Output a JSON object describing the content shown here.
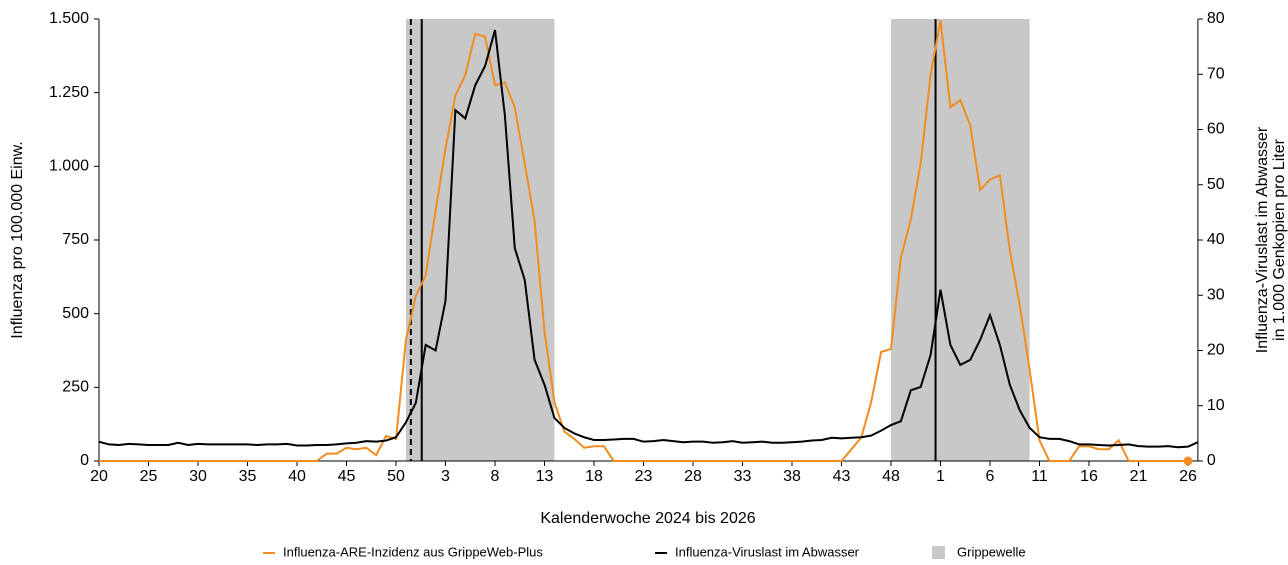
{
  "chart_data": {
    "type": "line",
    "xlabel": "Kalenderwoche 2024 bis 2026",
    "ylabel": "Influenza pro 100.000 Einw.",
    "y2label": [
      "Influenza-Viruslast im Abwasser",
      "in 1.000 Genkopien pro Liter"
    ],
    "x": [
      0,
      1,
      2,
      3,
      4,
      5,
      6,
      7,
      8,
      9,
      10,
      11,
      12,
      13,
      14,
      15,
      16,
      17,
      18,
      19,
      20,
      21,
      22,
      23,
      24,
      25,
      26,
      27,
      28,
      29,
      30,
      31,
      32,
      33,
      34,
      35,
      36,
      37,
      38,
      39,
      40,
      41,
      42,
      43,
      44,
      45,
      46,
      47,
      48,
      49,
      50,
      51,
      52,
      53,
      54,
      55,
      56,
      57,
      58,
      59,
      60,
      61,
      62,
      63,
      64,
      65,
      66,
      67,
      68,
      69,
      70,
      71,
      72,
      73,
      74,
      75,
      76,
      77,
      78,
      79,
      80,
      81,
      82,
      83,
      84,
      85,
      86,
      87,
      88,
      89,
      90,
      91,
      92,
      93,
      94,
      95,
      96,
      97,
      98,
      99,
      100,
      101,
      102,
      103,
      104,
      105,
      106,
      107,
      108,
      109,
      110,
      111
    ],
    "xlim": [
      0,
      111
    ],
    "xticks": [
      {
        "value": 0,
        "label": "20"
      },
      {
        "value": 5,
        "label": "25"
      },
      {
        "value": 10,
        "label": "30"
      },
      {
        "value": 15,
        "label": "35"
      },
      {
        "value": 20,
        "label": "40"
      },
      {
        "value": 25,
        "label": "45"
      },
      {
        "value": 30,
        "label": "50"
      },
      {
        "value": 35,
        "label": "3"
      },
      {
        "value": 40,
        "label": "8"
      },
      {
        "value": 45,
        "label": "13"
      },
      {
        "value": 50,
        "label": "18"
      },
      {
        "value": 55,
        "label": "23"
      },
      {
        "value": 60,
        "label": "28"
      },
      {
        "value": 65,
        "label": "33"
      },
      {
        "value": 70,
        "label": "38"
      },
      {
        "value": 75,
        "label": "43"
      },
      {
        "value": 80,
        "label": "48"
      },
      {
        "value": 85,
        "label": "1"
      },
      {
        "value": 90,
        "label": "6"
      },
      {
        "value": 95,
        "label": "11"
      },
      {
        "value": 100,
        "label": "16"
      },
      {
        "value": 105,
        "label": "21"
      },
      {
        "value": 110,
        "label": "26"
      }
    ],
    "ylim": [
      0,
      1500
    ],
    "yticks": [
      0,
      250,
      500,
      750,
      {
        "value": 1000,
        "label": "1.000"
      },
      {
        "value": 1250,
        "label": "1.250"
      },
      {
        "value": 1500,
        "label": "1.500"
      }
    ],
    "y2lim": [
      0,
      80
    ],
    "y2ticks": [
      0,
      10,
      20,
      30,
      40,
      50,
      60,
      70,
      80
    ],
    "bands": {
      "name": "Grippewelle",
      "color": "#c8c8c8",
      "ranges": [
        [
          31,
          46
        ],
        [
          80,
          94
        ]
      ]
    },
    "markers": [
      {
        "x": 31.5,
        "style": "dashed"
      },
      {
        "x": 32.6,
        "style": "solid"
      },
      {
        "x": 84.5,
        "style": "solid"
      }
    ],
    "series": [
      {
        "name": "Influenza-ARE-Inzidenz aus GrippeWeb-Plus",
        "color": "#f28c1e",
        "end_marker": true,
        "values": [
          0,
          0,
          0,
          0,
          0,
          0,
          0,
          0,
          0,
          0,
          0,
          0,
          0,
          0,
          0,
          0,
          0,
          0,
          0,
          0,
          0,
          0,
          0,
          25,
          25,
          45,
          40,
          45,
          20,
          85,
          75,
          410,
          560,
          630,
          850,
          1060,
          1240,
          1310,
          1450,
          1440,
          1275,
          1285,
          1200,
          1010,
          815,
          440,
          200,
          100,
          75,
          45,
          50,
          50,
          0,
          0,
          0,
          0,
          0,
          0,
          0,
          0,
          0,
          0,
          0,
          0,
          0,
          0,
          0,
          0,
          0,
          0,
          0,
          0,
          0,
          0,
          0,
          0,
          40,
          80,
          200,
          370,
          380,
          690,
          820,
          1010,
          1310,
          1495,
          1200,
          1225,
          1140,
          920,
          955,
          970,
          715,
          530,
          310,
          70,
          0,
          0,
          0,
          50,
          50,
          40,
          40,
          70,
          0,
          0,
          0,
          0,
          0,
          0,
          0,
          null
        ]
      },
      {
        "name": "Influenza-Viruslast im Abwasser",
        "color": "#000000",
        "axis": "y2",
        "values": [
          3.5,
          3,
          2.9,
          3.1,
          3,
          2.9,
          2.9,
          2.9,
          3.3,
          2.9,
          3.1,
          3,
          3,
          3,
          3,
          3,
          2.9,
          3,
          3,
          3.1,
          2.8,
          2.8,
          2.9,
          2.9,
          3,
          3.2,
          3.3,
          3.6,
          3.5,
          3.7,
          4.3,
          7,
          10.5,
          21,
          20,
          29,
          63.5,
          62,
          68,
          71.5,
          78,
          62.5,
          38.5,
          32.8,
          18.3,
          13.8,
          7.8,
          6,
          5,
          4.3,
          3.8,
          3.8,
          3.9,
          4,
          4,
          3.5,
          3.6,
          3.8,
          3.6,
          3.4,
          3.5,
          3.5,
          3.3,
          3.4,
          3.6,
          3.3,
          3.4,
          3.5,
          3.3,
          3.3,
          3.4,
          3.5,
          3.7,
          3.8,
          4.2,
          4.1,
          4.2,
          4.3,
          4.6,
          5.5,
          6.5,
          7.2,
          12.8,
          13.4,
          19.2,
          31,
          21,
          17.4,
          18.3,
          21.9,
          26.4,
          21,
          13.8,
          9.2,
          6,
          4.3,
          4,
          4,
          3.6,
          3,
          3,
          2.9,
          2.8,
          2.9,
          3,
          2.7,
          2.6,
          2.6,
          2.7,
          2.5,
          2.6,
          3.4
        ]
      }
    ]
  }
}
